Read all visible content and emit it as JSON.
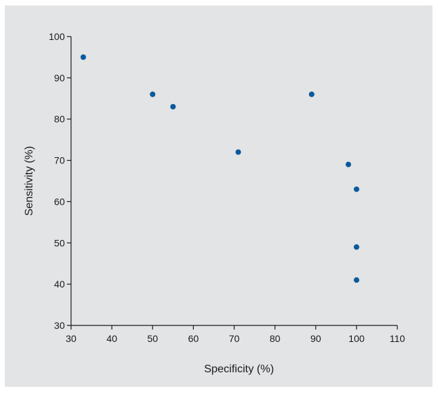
{
  "chart_data": {
    "type": "scatter",
    "title": "",
    "xlabel": "Specificity (%)",
    "ylabel": "Sensitivity (%)",
    "xlim": [
      30,
      110
    ],
    "ylim": [
      30,
      100
    ],
    "xticks": [
      30,
      40,
      50,
      60,
      70,
      80,
      90,
      100,
      110
    ],
    "yticks": [
      30,
      40,
      50,
      60,
      70,
      80,
      90,
      100
    ],
    "grid": false,
    "marker_color": "#0a5a9c",
    "points": [
      {
        "x": 33,
        "y": 95
      },
      {
        "x": 50,
        "y": 86
      },
      {
        "x": 55,
        "y": 83
      },
      {
        "x": 71,
        "y": 72
      },
      {
        "x": 89,
        "y": 86
      },
      {
        "x": 98,
        "y": 69
      },
      {
        "x": 100,
        "y": 63
      },
      {
        "x": 100,
        "y": 49
      },
      {
        "x": 100,
        "y": 41
      }
    ]
  }
}
